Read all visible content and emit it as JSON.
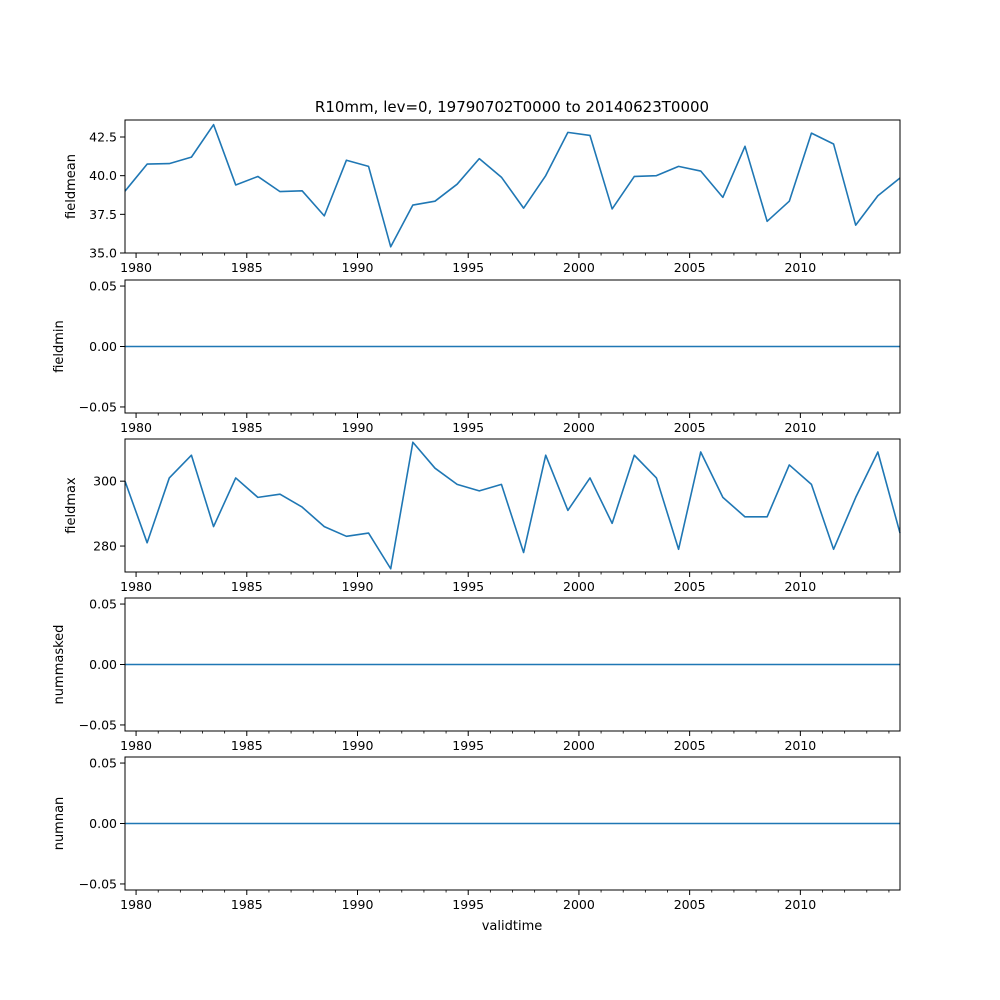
{
  "chart_data": {
    "type": "line",
    "title": "R10mm, lev=0, 19790702T0000 to 20140623T0000",
    "xlabel": "validtime",
    "line_color": "#1f77b4",
    "xlim": [
      1979.5,
      2014.5
    ],
    "x_ticks": [
      1980,
      1985,
      1990,
      1995,
      2000,
      2005,
      2010
    ],
    "x_tick_labels": [
      "1980",
      "1985",
      "1990",
      "1995",
      "2000",
      "2005",
      "2010"
    ],
    "x": [
      1979.5,
      1980.5,
      1981.5,
      1982.5,
      1983.5,
      1984.5,
      1985.5,
      1986.5,
      1987.5,
      1988.5,
      1989.5,
      1990.5,
      1991.5,
      1992.5,
      1993.5,
      1994.5,
      1995.5,
      1996.5,
      1997.5,
      1998.5,
      1999.5,
      2000.5,
      2001.5,
      2002.5,
      2003.5,
      2004.5,
      2005.5,
      2006.5,
      2007.5,
      2008.5,
      2009.5,
      2010.5,
      2011.5,
      2012.5,
      2013.5,
      2014.5
    ],
    "panels": [
      {
        "ylabel": "fieldmean",
        "ylim": [
          35.0,
          43.6
        ],
        "y_ticks": [
          35.0,
          37.5,
          40.0,
          42.5
        ],
        "y_tick_labels": [
          "35.0",
          "37.5",
          "40.0",
          "42.5"
        ],
        "values": [
          39.0,
          40.75,
          40.78,
          41.2,
          43.3,
          39.4,
          39.95,
          38.97,
          39.02,
          37.4,
          41.0,
          40.6,
          35.4,
          38.1,
          38.35,
          39.45,
          41.1,
          39.9,
          37.9,
          40.0,
          42.8,
          42.6,
          37.85,
          39.95,
          40.0,
          40.6,
          40.3,
          38.6,
          41.9,
          37.05,
          38.35,
          42.75,
          42.05,
          36.8,
          38.7,
          39.85
        ]
      },
      {
        "ylabel": "fieldmin",
        "ylim": [
          -0.055,
          0.055
        ],
        "y_ticks": [
          -0.05,
          0.0,
          0.05
        ],
        "y_tick_labels": [
          "−0.05",
          "0.00",
          "0.05"
        ],
        "values": [
          0,
          0,
          0,
          0,
          0,
          0,
          0,
          0,
          0,
          0,
          0,
          0,
          0,
          0,
          0,
          0,
          0,
          0,
          0,
          0,
          0,
          0,
          0,
          0,
          0,
          0,
          0,
          0,
          0,
          0,
          0,
          0,
          0,
          0,
          0,
          0
        ]
      },
      {
        "ylabel": "fieldmax",
        "ylim": [
          272.0,
          313.0
        ],
        "y_ticks": [
          280,
          300
        ],
        "y_tick_labels": [
          "280",
          "300"
        ],
        "values": [
          300,
          281,
          301,
          308,
          286,
          301,
          295,
          296,
          292,
          286,
          283,
          284,
          273,
          312,
          304,
          299,
          297,
          299,
          278,
          308,
          291,
          301,
          287,
          308,
          301,
          279,
          309,
          295,
          289,
          289,
          305,
          299,
          279,
          295,
          309,
          284
        ]
      },
      {
        "ylabel": "nummasked",
        "ylim": [
          -0.055,
          0.055
        ],
        "y_ticks": [
          -0.05,
          0.0,
          0.05
        ],
        "y_tick_labels": [
          "−0.05",
          "0.00",
          "0.05"
        ],
        "values": [
          0,
          0,
          0,
          0,
          0,
          0,
          0,
          0,
          0,
          0,
          0,
          0,
          0,
          0,
          0,
          0,
          0,
          0,
          0,
          0,
          0,
          0,
          0,
          0,
          0,
          0,
          0,
          0,
          0,
          0,
          0,
          0,
          0,
          0,
          0,
          0
        ]
      },
      {
        "ylabel": "numnan",
        "ylim": [
          -0.055,
          0.055
        ],
        "y_ticks": [
          -0.05,
          0.0,
          0.05
        ],
        "y_tick_labels": [
          "−0.05",
          "0.00",
          "0.05"
        ],
        "values": [
          0,
          0,
          0,
          0,
          0,
          0,
          0,
          0,
          0,
          0,
          0,
          0,
          0,
          0,
          0,
          0,
          0,
          0,
          0,
          0,
          0,
          0,
          0,
          0,
          0,
          0,
          0,
          0,
          0,
          0,
          0,
          0,
          0,
          0,
          0,
          0
        ]
      }
    ]
  }
}
